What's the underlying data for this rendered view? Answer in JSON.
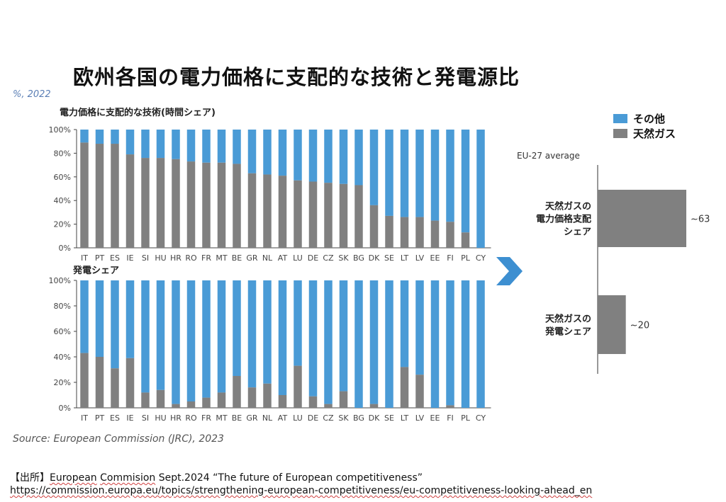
{
  "page": {
    "title": "欧州各国の電力価格に支配的な技術と発電源比",
    "unit": "%, 2022",
    "source": "Source: European Commission (JRC), 2023",
    "citation_prefix": "【出所】",
    "citation_word_1": "European",
    "citation_word_2": "Commision",
    "citation_rest": "Sept.2024 “The future of European competitiveness”",
    "citation_url": "https://commission.europa.eu/topics/strengthening-european-competitiveness/eu-competitiveness-looking-ahead_en"
  },
  "colors": {
    "other": "#4a9bd6",
    "gas": "#808080",
    "axis": "#444444",
    "arrow": "#3d8fd1"
  },
  "legend": {
    "items": [
      {
        "label": "その他",
        "color": "#4a9bd6"
      },
      {
        "label": "天然ガス",
        "color": "#808080"
      }
    ]
  },
  "chart_data": [
    {
      "type": "bar",
      "stacked": true,
      "title": "電力価格に支配的な技術(時間シェア)",
      "categories": [
        "IT",
        "PT",
        "ES",
        "IE",
        "SI",
        "HU",
        "HR",
        "RO",
        "FR",
        "MT",
        "BE",
        "GR",
        "NL",
        "AT",
        "LU",
        "DE",
        "CZ",
        "SK",
        "BG",
        "DK",
        "SE",
        "LT",
        "LV",
        "EE",
        "FI",
        "PL",
        "CY"
      ],
      "ylim": [
        0,
        100
      ],
      "yticks": [
        "0%",
        "20%",
        "40%",
        "60%",
        "80%",
        "100%"
      ],
      "series": [
        {
          "name": "天然ガス",
          "values": [
            89,
            88,
            88,
            79,
            76,
            76,
            75,
            73,
            72,
            72,
            71,
            63,
            62,
            61,
            57,
            56,
            55,
            54,
            53,
            36,
            27,
            26,
            26,
            23,
            22,
            13,
            0
          ]
        },
        {
          "name": "その他",
          "values": [
            11,
            12,
            12,
            21,
            24,
            24,
            25,
            27,
            28,
            28,
            29,
            37,
            38,
            39,
            43,
            44,
            45,
            46,
            47,
            64,
            73,
            74,
            74,
            77,
            78,
            87,
            100
          ]
        }
      ]
    },
    {
      "type": "bar",
      "stacked": true,
      "title": "発電シェア",
      "categories": [
        "IT",
        "PT",
        "ES",
        "IE",
        "SI",
        "HU",
        "HR",
        "RO",
        "FR",
        "MT",
        "BE",
        "GR",
        "NL",
        "AT",
        "LU",
        "DE",
        "CZ",
        "SK",
        "BG",
        "DK",
        "SE",
        "LT",
        "LV",
        "EE",
        "FI",
        "PL",
        "CY"
      ],
      "ylim": [
        0,
        100
      ],
      "yticks": [
        "0%",
        "20%",
        "40%",
        "60%",
        "80%",
        "100%"
      ],
      "series": [
        {
          "name": "天然ガス",
          "values": [
            43,
            40,
            31,
            39,
            12,
            14,
            3,
            5,
            8,
            12,
            25,
            16,
            19,
            10,
            33,
            9,
            3,
            13,
            0,
            3,
            0,
            32,
            26,
            0,
            2,
            0,
            0
          ]
        },
        {
          "name": "その他",
          "values": [
            57,
            60,
            69,
            61,
            88,
            86,
            97,
            95,
            92,
            88,
            75,
            84,
            81,
            90,
            67,
            91,
            97,
            87,
            100,
            97,
            100,
            68,
            74,
            100,
            98,
            100,
            100
          ]
        }
      ]
    },
    {
      "type": "bar",
      "orientation": "horizontal",
      "title": "EU-27 average",
      "categories": [
        "天然ガスの 電力価格支配 シェア",
        "天然ガスの 発電シェア"
      ],
      "category_lines": [
        [
          "天然ガスの",
          "電力価格支配",
          "シェア"
        ],
        [
          "天然ガスの",
          "発電シェア"
        ]
      ],
      "values": [
        63,
        20
      ],
      "value_labels": [
        "~63",
        "~20"
      ]
    }
  ]
}
